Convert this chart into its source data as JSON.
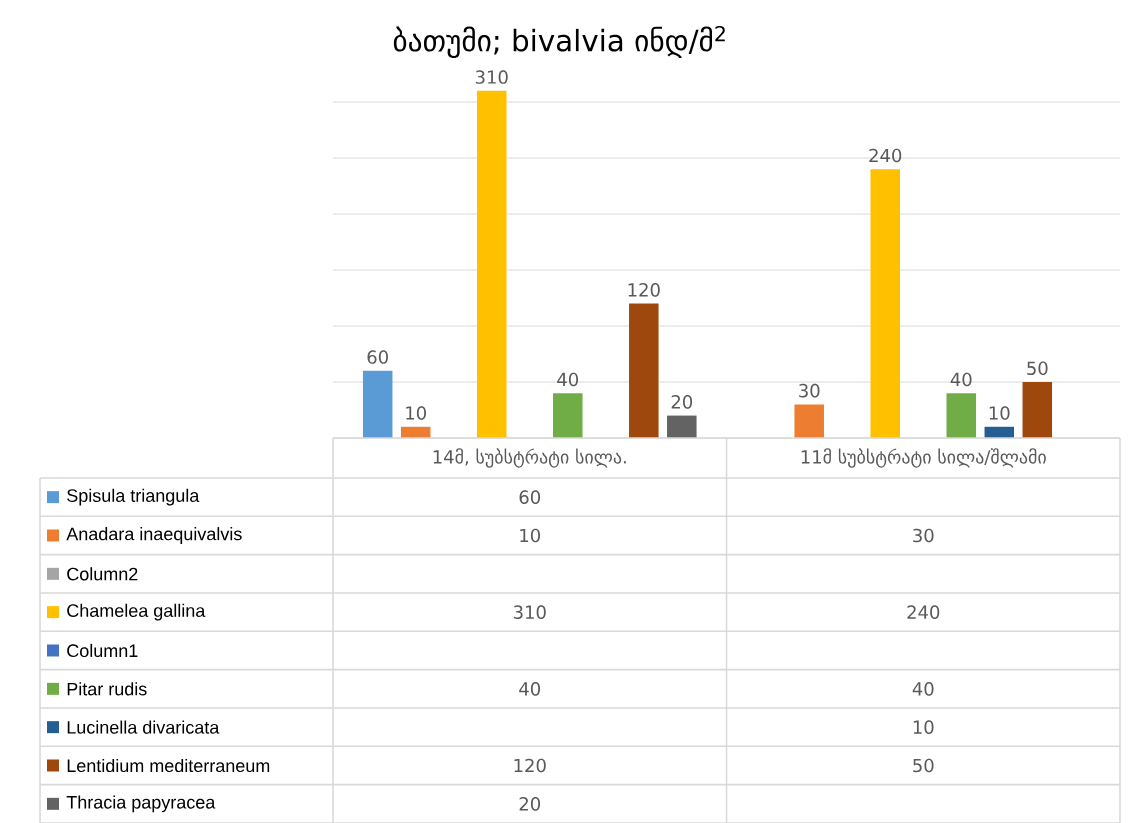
{
  "chart_data": {
    "type": "bar",
    "title": "ბათუმი; bivalvia ინდ/მ$^{2}$",
    "categories": [
      "14მ, სუბსტრატი სილა.",
      "11მ სუბსტრატი სილა/შლამი"
    ],
    "series": [
      {
        "name": "Spisula triangula",
        "color": "#5b9bd5",
        "values": [
          60,
          null
        ],
        "value_labels": [
          "60",
          null
        ]
      },
      {
        "name": "Anadara inaequivalvis",
        "color": "#ed7d31",
        "values": [
          10,
          30
        ],
        "value_labels": [
          "10",
          "30"
        ]
      },
      {
        "name": "Column2",
        "color": "#a5a5a5",
        "values": [
          null,
          null
        ]
      },
      {
        "name": "Chamelea gallina",
        "color": "#ffc000",
        "values": [
          310,
          240
        ],
        "value_labels": [
          "310",
          "240"
        ]
      },
      {
        "name": "Column1",
        "color": "#4472c4",
        "values": [
          null,
          null
        ]
      },
      {
        "name": "Pitar rudis",
        "color": "#70ad47",
        "values": [
          40,
          40
        ],
        "value_labels": [
          "40",
          "40"
        ]
      },
      {
        "name": "Lucinella divaricata",
        "color": "#255e91",
        "values": [
          null,
          10
        ],
        "value_labels": [
          null,
          "10"
        ]
      },
      {
        "name": "Lentidium mediterraneum",
        "color": "#9e480e",
        "values": [
          120,
          50
        ],
        "value_labels": [
          "120",
          "50"
        ]
      },
      {
        "name": "Thracia papyracea",
        "color": "#636363",
        "values": [
          20,
          null
        ],
        "value_labels": [
          "20",
          null
        ]
      }
    ],
    "yticks": [
      {
        "value": 0,
        "label": null
      },
      {
        "value": 50,
        "label": null
      },
      {
        "value": 100,
        "label": null
      },
      {
        "value": 150,
        "label": null
      },
      {
        "value": 200,
        "label": null
      },
      {
        "value": 250,
        "label": null
      },
      {
        "value": 300,
        "label": null
      }
    ],
    "tick_labels": "x",
    "annotations": [
      "60",
      "10",
      "30",
      "310",
      "240",
      "40",
      "40",
      "10",
      "120",
      "50",
      "20"
    ],
    "grid": "y",
    "legend": "bottom"
  }
}
